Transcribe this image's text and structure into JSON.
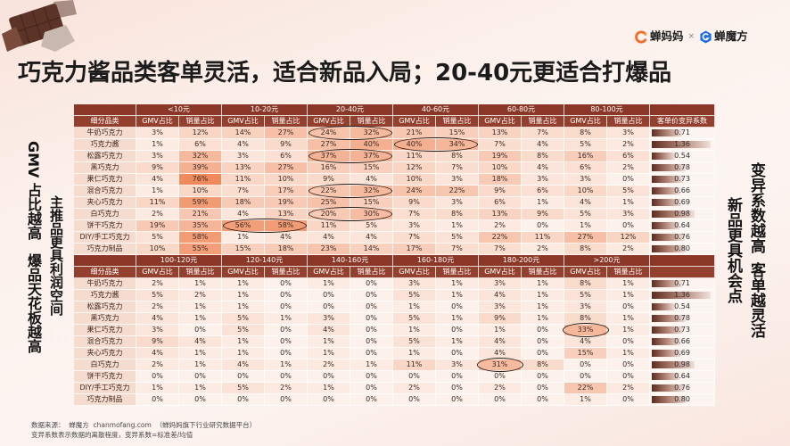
{
  "title": "巧克力酱品类客单灵活，适合新品入局；20-40元更适合打爆品",
  "logos": {
    "brand1": "蝉妈妈",
    "separator": "×",
    "brand2": "蝉魔方"
  },
  "icons": {
    "brand1": "chanmama-logo-icon",
    "brand2": "chanmofang-logo-icon",
    "decoration": "chocolate-image"
  },
  "notes": {
    "left_outer_top": "GMV 占比越高",
    "left_outer_bottom": "爆品天花板越高",
    "left_inner": "主推品更具利润空间",
    "right_outer_top": "变异系数越高",
    "right_outer_bottom": "客单越灵活",
    "right_inner": "新品更具机会点"
  },
  "colors": {
    "header": "#8a3727",
    "header_sub": "#94402f",
    "name_cell": "#f6dccf",
    "heat_low": "#fdf1eb",
    "heat_high": "#ef8a5c",
    "cv_bar": "#5e2b1f",
    "cv_cell": "#fbf4f1",
    "circle": "#2a1a14"
  },
  "table": {
    "category_header": "细分品类",
    "gmv_label": "GMV占比",
    "sales_label": "销量占比",
    "sections": [
      {
        "bands": [
          "<10元",
          "10-20元",
          "20-40元",
          "40-60元",
          "60-80元",
          "80-100元"
        ],
        "cv_header": "客单价变异系数",
        "rows": [
          {
            "name": "牛奶巧克力",
            "values": [
              "3%",
              "12%",
              "14%",
              "27%",
              "24%",
              "32%",
              "21%",
              "15%",
              "13%",
              "7%",
              "8%",
              "3%"
            ],
            "cv": "0.71",
            "circled": [
              4,
              5
            ]
          },
          {
            "name": "巧克力酱",
            "values": [
              "1%",
              "6%",
              "4%",
              "9%",
              "27%",
              "40%",
              "40%",
              "34%",
              "7%",
              "4%",
              "5%",
              "2%"
            ],
            "cv": "1.36",
            "circled": [
              6,
              7
            ]
          },
          {
            "name": "松露巧克力",
            "values": [
              "3%",
              "32%",
              "3%",
              "6%",
              "37%",
              "37%",
              "11%",
              "8%",
              "19%",
              "8%",
              "16%",
              "6%"
            ],
            "cv": "0.54",
            "circled": [
              4,
              5
            ]
          },
          {
            "name": "黑巧克力",
            "values": [
              "9%",
              "39%",
              "13%",
              "27%",
              "16%",
              "15%",
              "12%",
              "7%",
              "10%",
              "4%",
              "6%",
              "2%"
            ],
            "cv": "0.78"
          },
          {
            "name": "果仁巧克力",
            "values": [
              "4%",
              "76%",
              "11%",
              "10%",
              "9%",
              "4%",
              "10%",
              "3%",
              "18%",
              "3%",
              "3%",
              "0%"
            ],
            "cv": "0.73"
          },
          {
            "name": "混合巧克力",
            "values": [
              "1%",
              "10%",
              "7%",
              "17%",
              "22%",
              "32%",
              "24%",
              "22%",
              "9%",
              "6%",
              "10%",
              "5%"
            ],
            "cv": "0.66",
            "circled": [
              4,
              5
            ]
          },
          {
            "name": "夹心巧克力",
            "values": [
              "11%",
              "59%",
              "18%",
              "19%",
              "25%",
              "15%",
              "9%",
              "3%",
              "6%",
              "1%",
              "4%",
              "1%"
            ],
            "cv": "0.69"
          },
          {
            "name": "白巧克力",
            "values": [
              "2%",
              "21%",
              "4%",
              "13%",
              "20%",
              "30%",
              "7%",
              "8%",
              "13%",
              "9%",
              "5%",
              "3%"
            ],
            "cv": "0.98",
            "circled": [
              4,
              5
            ]
          },
          {
            "name": "饼干巧克力",
            "values": [
              "19%",
              "35%",
              "56%",
              "58%",
              "11%",
              "5%",
              "3%",
              "1%",
              "2%",
              "0%",
              "1%",
              "0%"
            ],
            "cv": "0.64",
            "circled": [
              2,
              3
            ]
          },
          {
            "name": "DIY/手工巧克力",
            "values": [
              "5%",
              "58%",
              "1%",
              "4%",
              "4%",
              "4%",
              "7%",
              "5%",
              "22%",
              "11%",
              "27%",
              "12%"
            ],
            "cv": "0.76"
          },
          {
            "name": "巧克力制品",
            "values": [
              "10%",
              "55%",
              "15%",
              "18%",
              "23%",
              "14%",
              "17%",
              "7%",
              "7%",
              "2%",
              "8%",
              "2%"
            ],
            "cv": "0.80"
          }
        ]
      },
      {
        "bands": [
          "100-120元",
          "120-140元",
          "140-160元",
          "160-180元",
          "180-200元",
          ">200元"
        ],
        "rows": [
          {
            "name": "牛奶巧克力",
            "values": [
              "2%",
              "1%",
              "1%",
              "0%",
              "1%",
              "0%",
              "3%",
              "1%",
              "3%",
              "1%",
              "8%",
              "1%"
            ],
            "cv": "0.71"
          },
          {
            "name": "巧克力酱",
            "values": [
              "5%",
              "2%",
              "1%",
              "0%",
              "0%",
              "0%",
              "5%",
              "1%",
              "4%",
              "1%",
              "5%",
              "1%"
            ],
            "cv": "1.36"
          },
          {
            "name": "松露巧克力",
            "values": [
              "2%",
              "1%",
              "1%",
              "0%",
              "0%",
              "0%",
              "1%",
              "0%",
              "3%",
              "1%",
              "3%",
              "0%"
            ],
            "cv": "0.54"
          },
          {
            "name": "黑巧克力",
            "values": [
              "4%",
              "1%",
              "5%",
              "1%",
              "3%",
              "0%",
              "5%",
              "1%",
              "9%",
              "1%",
              "8%",
              "1%"
            ],
            "cv": "0.78"
          },
          {
            "name": "果仁巧克力",
            "values": [
              "3%",
              "0%",
              "5%",
              "0%",
              "4%",
              "0%",
              "1%",
              "0%",
              "1%",
              "0%",
              "33%",
              "1%"
            ],
            "cv": "0.73",
            "circled": [
              10
            ]
          },
          {
            "name": "混合巧克力",
            "values": [
              "9%",
              "4%",
              "1%",
              "0%",
              "1%",
              "0%",
              "5%",
              "1%",
              "4%",
              "0%",
              "4%",
              "0%"
            ],
            "cv": "0.66"
          },
          {
            "name": "夹心巧克力",
            "values": [
              "4%",
              "1%",
              "1%",
              "0%",
              "1%",
              "0%",
              "1%",
              "0%",
              "4%",
              "0%",
              "15%",
              "1%"
            ],
            "cv": "0.69"
          },
          {
            "name": "白巧克力",
            "values": [
              "2%",
              "1%",
              "4%",
              "1%",
              "2%",
              "1%",
              "11%",
              "3%",
              "31%",
              "8%",
              "0%",
              "0%"
            ],
            "cv": "0.98",
            "circled": [
              8
            ]
          },
          {
            "name": "饼干巧克力",
            "values": [
              "0%",
              "0%",
              "0%",
              "0%",
              "0%",
              "0%",
              "0%",
              "0%",
              "0%",
              "0%",
              "0%",
              "0%"
            ],
            "cv": "0.64"
          },
          {
            "name": "DIY/手工巧克力",
            "values": [
              "1%",
              "1%",
              "5%",
              "2%",
              "1%",
              "0%",
              "2%",
              "0%",
              "2%",
              "0%",
              "22%",
              "2%"
            ],
            "cv": "0.76"
          },
          {
            "name": "巧克力制品",
            "values": [
              "0%",
              "0%",
              "0%",
              "0%",
              "0%",
              "0%",
              "0%",
              "0%",
              "0%",
              "0%",
              "1%",
              "0%"
            ],
            "cv": "0.80"
          }
        ]
      }
    ]
  },
  "footnote": {
    "source": "数据来源：  蝉魔方  chanmofang.com  （蝉妈妈旗下行业研究数据平台）",
    "definition": "变异系数表示数据的离散程度，变异系数=标准差/均值"
  }
}
